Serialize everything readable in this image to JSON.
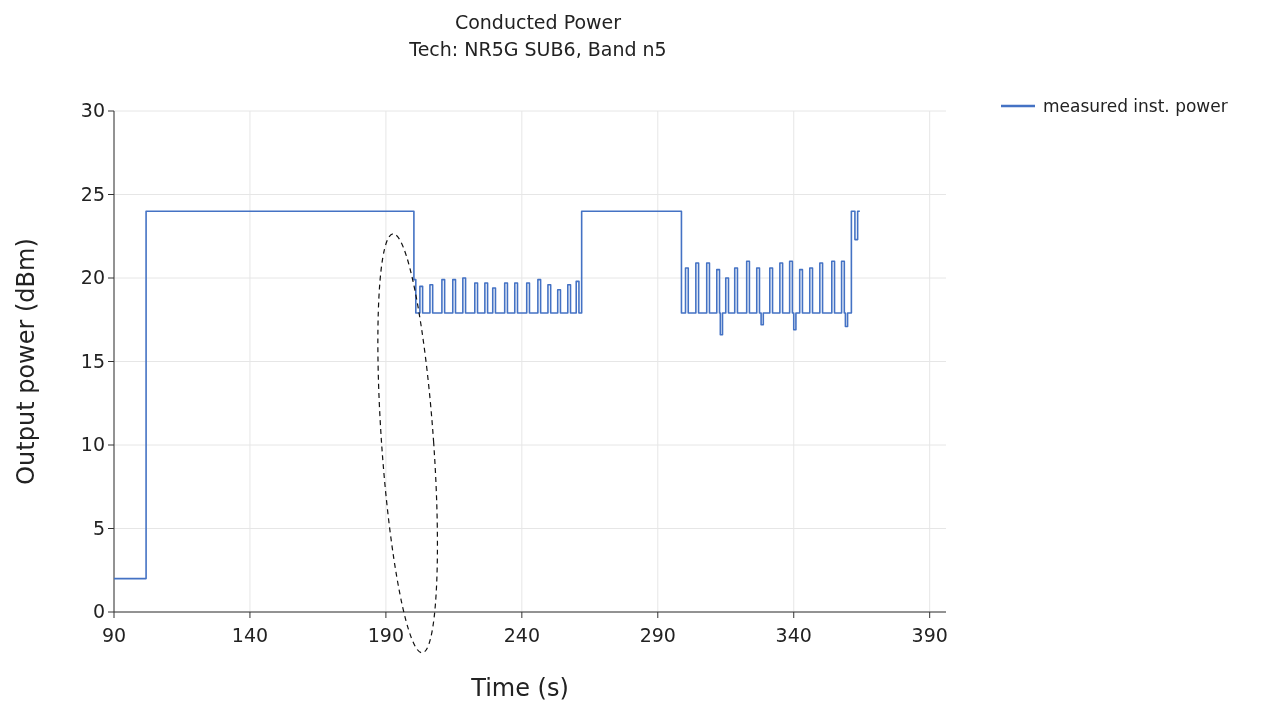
{
  "chart_data": {
    "type": "line",
    "title": "Conducted Power",
    "subtitle": "Tech: NR5G SUB6, Band n5",
    "xlabel": "Time (s)",
    "ylabel": "Output power (dBm)",
    "xlim": [
      90,
      396
    ],
    "xticks": [
      90,
      140,
      190,
      240,
      290,
      340,
      390
    ],
    "ylim": [
      0,
      30
    ],
    "yticks": [
      0,
      5,
      10,
      15,
      20,
      25,
      30
    ],
    "grid": true,
    "legend": "top right",
    "marker": "none",
    "line_style": "solid",
    "series": [
      {
        "name": "measured inst. power",
        "color": "#4472c4",
        "x": [
          90,
          101.8,
          101.8,
          200.3,
          200.3,
          201,
          201,
          202.5,
          202.5,
          203.5,
          203.5,
          206.2,
          206.2,
          207.2,
          207.2,
          210.6,
          210.6,
          211.6,
          211.6,
          214.6,
          214.6,
          215.6,
          215.6,
          218.3,
          218.3,
          219.3,
          219.3,
          222.7,
          222.7,
          223.7,
          223.7,
          226.4,
          226.4,
          227.4,
          227.4,
          229.3,
          229.3,
          230.3,
          230.3,
          233.7,
          233.7,
          234.7,
          234.7,
          237.4,
          237.4,
          238.4,
          238.4,
          241.8,
          241.8,
          242.8,
          242.8,
          245.9,
          245.9,
          246.9,
          246.9,
          249.6,
          249.6,
          250.6,
          250.6,
          253.2,
          253.2,
          254.2,
          254.2,
          256.9,
          256.9,
          257.9,
          257.9,
          260,
          260,
          261,
          261,
          262,
          262,
          298.7,
          298.7,
          300.2,
          300.2,
          301.2,
          301.2,
          304,
          304,
          305,
          305,
          308,
          308,
          309,
          309,
          311.7,
          311.7,
          312.7,
          312.7,
          313,
          313,
          313.8,
          313.8,
          315,
          315,
          316,
          316,
          318.3,
          318.3,
          319.3,
          319.3,
          322.7,
          322.7,
          323.7,
          323.7,
          326.4,
          326.4,
          327.4,
          327.4,
          328,
          328,
          328.8,
          328.8,
          331.2,
          331.2,
          332.2,
          332.2,
          334.9,
          334.9,
          335.9,
          335.9,
          338.5,
          338.5,
          339.5,
          339.5,
          340,
          340,
          340.8,
          340.8,
          342.2,
          342.2,
          343.2,
          343.2,
          345.9,
          345.9,
          346.9,
          346.9,
          349.6,
          349.6,
          350.6,
          350.6,
          354,
          354,
          355,
          355,
          357.6,
          357.6,
          358.6,
          358.6,
          359,
          359,
          359.8,
          359.8,
          361.2,
          361.2,
          362.5,
          362.5,
          363.5,
          363.5,
          364.3
        ],
        "values": [
          2,
          2,
          24,
          24,
          19.9,
          19.9,
          17.9,
          17.9,
          19.5,
          19.5,
          17.9,
          17.9,
          19.6,
          19.6,
          17.9,
          17.9,
          19.9,
          19.9,
          17.9,
          17.9,
          19.9,
          19.9,
          17.9,
          17.9,
          20,
          20,
          17.9,
          17.9,
          19.7,
          19.7,
          17.9,
          17.9,
          19.7,
          19.7,
          17.9,
          17.9,
          19.4,
          19.4,
          17.9,
          17.9,
          19.7,
          19.7,
          17.9,
          17.9,
          19.7,
          19.7,
          17.9,
          17.9,
          19.7,
          19.7,
          17.9,
          17.9,
          19.9,
          19.9,
          17.9,
          17.9,
          19.6,
          19.6,
          17.9,
          17.9,
          19.3,
          19.3,
          17.9,
          17.9,
          19.6,
          19.6,
          17.9,
          17.9,
          19.8,
          19.8,
          17.9,
          17.9,
          24,
          24,
          17.9,
          17.9,
          20.6,
          20.6,
          17.9,
          17.9,
          20.9,
          20.9,
          17.9,
          17.9,
          20.9,
          20.9,
          17.9,
          17.9,
          20.5,
          20.5,
          17.9,
          17.9,
          16.6,
          16.6,
          17.9,
          17.9,
          20,
          20,
          17.9,
          17.9,
          20.6,
          20.6,
          17.9,
          17.9,
          21,
          21,
          17.9,
          17.9,
          20.6,
          20.6,
          17.9,
          17.9,
          17.2,
          17.2,
          17.9,
          17.9,
          20.6,
          20.6,
          17.9,
          17.9,
          20.9,
          20.9,
          17.9,
          17.9,
          21,
          21,
          17.9,
          17.9,
          16.9,
          16.9,
          17.9,
          17.9,
          20.5,
          20.5,
          17.9,
          17.9,
          20.6,
          20.6,
          17.9,
          17.9,
          20.9,
          20.9,
          17.9,
          17.9,
          21,
          21,
          17.9,
          17.9,
          21,
          21,
          17.9,
          17.9,
          17.1,
          17.1,
          17.9,
          17.9,
          24,
          24,
          22.3,
          22.3,
          24,
          24
        ]
      }
    ]
  }
}
